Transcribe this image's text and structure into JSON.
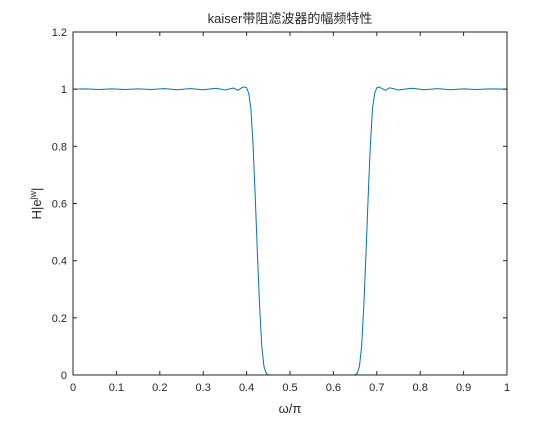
{
  "chart_data": {
    "type": "line",
    "title": "kaiser带阻滤波器的幅频特性",
    "xlabel": "ω/π",
    "ylabel": {
      "base": "H|e",
      "sup": "jw",
      "suffix": "|"
    },
    "xlim": [
      0,
      1
    ],
    "ylim": [
      0,
      1.2
    ],
    "xticks": [
      0,
      0.1,
      0.2,
      0.3,
      0.4,
      0.5,
      0.6,
      0.7,
      0.8,
      0.9,
      1
    ],
    "xtick_labels": [
      "0",
      "0.1",
      "0.2",
      "0.3",
      "0.4",
      "0.5",
      "0.6",
      "0.7",
      "0.8",
      "0.9",
      "1"
    ],
    "yticks": [
      0,
      0.2,
      0.4,
      0.6,
      0.8,
      1,
      1.2
    ],
    "ytick_labels": [
      "0",
      "0.2",
      "0.4",
      "0.6",
      "0.8",
      "1",
      "1.2"
    ],
    "grid": false,
    "box": true,
    "series": [
      {
        "color": "#0072bd",
        "x": [
          0,
          0.03,
          0.06,
          0.09,
          0.12,
          0.15,
          0.18,
          0.21,
          0.24,
          0.27,
          0.3,
          0.33,
          0.35,
          0.37,
          0.38,
          0.39,
          0.395,
          0.4,
          0.405,
          0.41,
          0.415,
          0.42,
          0.425,
          0.43,
          0.435,
          0.44,
          0.445,
          0.45,
          0.455,
          0.47,
          0.5,
          0.55,
          0.6,
          0.63,
          0.645,
          0.65,
          0.655,
          0.66,
          0.665,
          0.67,
          0.675,
          0.68,
          0.685,
          0.69,
          0.695,
          0.7,
          0.705,
          0.71,
          0.72,
          0.73,
          0.75,
          0.78,
          0.81,
          0.84,
          0.87,
          0.9,
          0.93,
          0.96,
          1.0
        ],
        "y": [
          1.0,
          1.001,
          0.999,
          1.001,
          0.999,
          1.001,
          0.999,
          1.002,
          0.998,
          1.002,
          0.998,
          1.003,
          0.997,
          1.004,
          0.996,
          1.006,
          1.008,
          1.005,
          0.985,
          0.93,
          0.8,
          0.62,
          0.42,
          0.24,
          0.1,
          0.03,
          0.006,
          0.001,
          0.0,
          0.0,
          0.0,
          0.0,
          0.0,
          0.0,
          0.0,
          0.001,
          0.006,
          0.03,
          0.1,
          0.24,
          0.42,
          0.62,
          0.8,
          0.93,
          0.985,
          1.005,
          1.008,
          1.004,
          0.996,
          1.005,
          0.997,
          1.003,
          0.998,
          1.002,
          0.998,
          1.001,
          0.999,
          1.001,
          1.0
        ]
      }
    ]
  }
}
